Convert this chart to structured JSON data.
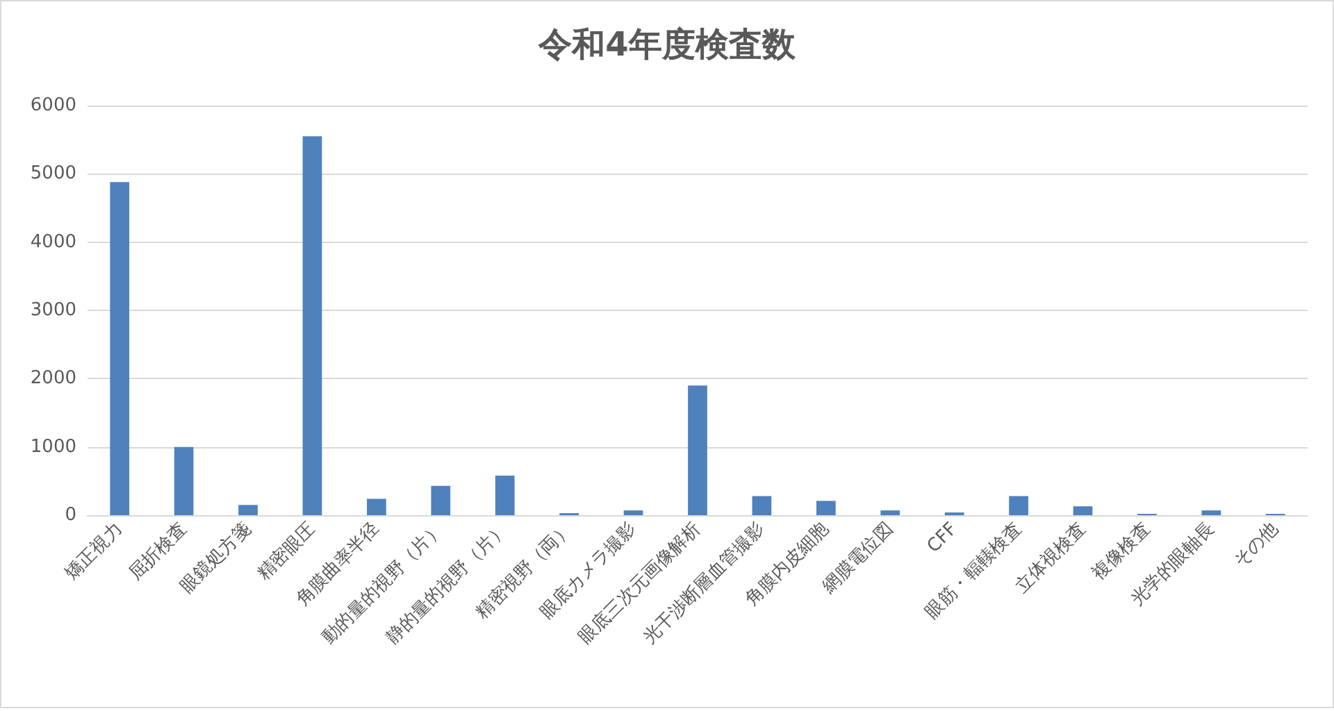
{
  "chart_data": {
    "type": "bar",
    "title": "令和4年度検査数",
    "categories": [
      "矯正視力",
      "屈折検査",
      "眼鏡処方箋",
      "精密眼圧",
      "角膜曲率半径",
      "動的量的視野（片）",
      "静的量的視野（片）",
      "精密視野（両）",
      "眼底カメラ撮影",
      "眼底三次元画像解析",
      "光干渉断層血管撮影",
      "角膜内皮細胞",
      "網膜電位図",
      "CFF",
      "眼筋・輻輳検査",
      "立体視検査",
      "複像検査",
      "光学的眼軸長",
      "その他"
    ],
    "values": [
      4880,
      1000,
      150,
      5550,
      240,
      430,
      580,
      30,
      70,
      1900,
      280,
      210,
      70,
      40,
      280,
      130,
      20,
      70,
      20
    ],
    "color": "#4f81bd",
    "ylim": [
      0,
      6000
    ],
    "yticks": [
      0,
      1000,
      2000,
      3000,
      4000,
      5000,
      6000
    ],
    "grid": "y"
  }
}
